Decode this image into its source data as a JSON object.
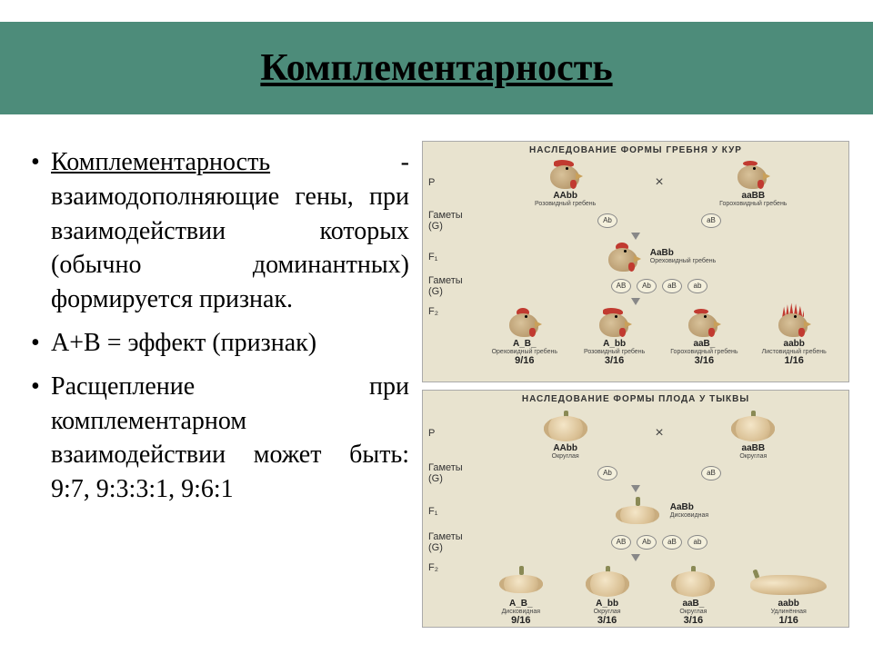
{
  "title": "Комплементарность",
  "bullets": {
    "b1_term": "Комплементарность",
    "b1_rest": " - взаимодополняющие гены, при взаимодействии которых (обычно доминантных) формируется признак.",
    "b2": "А+В = эффект (признак)",
    "b3": "Расщепление при комплементарном взаимодействии может быть: 9:7, 9:3:3:1, 9:6:1"
  },
  "fig1": {
    "title": "НАСЛЕДОВАНИЕ ФОРМЫ ГРЕБНЯ У КУР",
    "rows": {
      "P": "P",
      "G": "Гаметы (G)",
      "F1": "F₁",
      "F2": "F₂"
    },
    "P1_geno": "AAbb",
    "P1_desc": "Розовидный гребень",
    "P2_geno": "aaBB",
    "P2_desc": "Гороховидный гребень",
    "g_P1": "Ab",
    "g_P2": "aB",
    "F1_geno": "AaBb",
    "F1_desc": "Ореховидный гребень",
    "g_F1": [
      "AB",
      "Ab",
      "aB",
      "ab"
    ],
    "F2": [
      {
        "geno": "A_B_",
        "desc": "Ореховидный гребень",
        "frac": "9/16",
        "comb": "walnut"
      },
      {
        "geno": "A_bb",
        "desc": "Розовидный гребень",
        "frac": "3/16",
        "comb": "rose"
      },
      {
        "geno": "aaB_",
        "desc": "Гороховидный гребень",
        "frac": "3/16",
        "comb": "pea"
      },
      {
        "geno": "aabb",
        "desc": "Листовидный гребень",
        "frac": "1/16",
        "comb": "single"
      }
    ]
  },
  "fig2": {
    "title": "НАСЛЕДОВАНИЕ ФОРМЫ ПЛОДА У ТЫКВЫ",
    "P1_geno": "AAbb",
    "P1_desc": "Округлая",
    "P2_geno": "aaBB",
    "P2_desc": "Округлая",
    "g_P1": "Ab",
    "g_P2": "aB",
    "F1_geno": "AaBb",
    "F1_desc": "Дисковидная",
    "g_F1": [
      "AB",
      "Ab",
      "aB",
      "ab"
    ],
    "F2": [
      {
        "geno": "A_B_",
        "desc": "Дисковидная",
        "frac": "9/16",
        "shape": "disk"
      },
      {
        "geno": "A_bb",
        "desc": "Округлая",
        "frac": "3/16",
        "shape": "round"
      },
      {
        "geno": "aaB_",
        "desc": "Округлая",
        "frac": "3/16",
        "shape": "round"
      },
      {
        "geno": "aabb",
        "desc": "Удлинённая",
        "frac": "1/16",
        "shape": "long"
      }
    ]
  },
  "colors": {
    "title_bg": "#4d8c7a",
    "panel_bg": "#e8e3cf",
    "comb": "#c13a30",
    "feather": "#b89a6e"
  }
}
